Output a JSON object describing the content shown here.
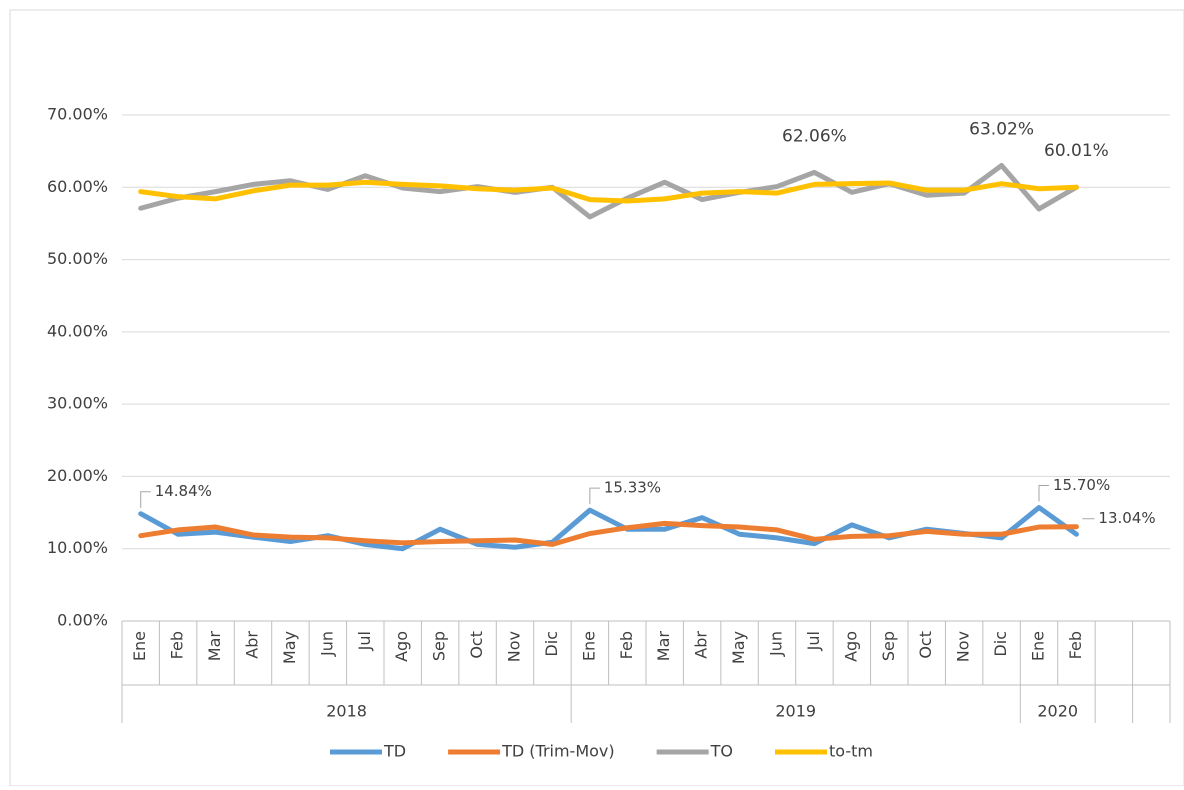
{
  "chart_data": {
    "type": "line",
    "category_groups": [
      {
        "name": "2018",
        "categories": [
          "Ene",
          "Feb",
          "Mar",
          "Abr",
          "May",
          "Jun",
          "Jul",
          "Ago",
          "Sep",
          "Oct",
          "Nov",
          "Dic"
        ]
      },
      {
        "name": "2019",
        "categories": [
          "Ene",
          "Feb",
          "Mar",
          "Abr",
          "May",
          "Jun",
          "Jul",
          "Ago",
          "Sep",
          "Oct",
          "Nov",
          "Dic"
        ]
      },
      {
        "name": "2020",
        "categories": [
          "Ene",
          "Feb"
        ]
      },
      {
        "name": null,
        "categories": [
          null,
          null
        ]
      }
    ],
    "series": [
      {
        "name": "TD",
        "color": "#5b9bd5",
        "values": [
          14.84,
          12.0,
          12.3,
          11.6,
          11.0,
          11.8,
          10.6,
          10.0,
          12.7,
          10.6,
          10.2,
          10.9,
          15.33,
          12.7,
          12.7,
          14.3,
          12.0,
          11.5,
          10.7,
          13.3,
          11.5,
          12.7,
          12.1,
          11.5,
          15.7,
          12.0,
          null,
          null
        ],
        "value_labels": [
          "14.84%",
          null,
          null,
          null,
          null,
          null,
          null,
          null,
          null,
          null,
          null,
          null,
          "15.33%",
          null,
          null,
          null,
          null,
          null,
          null,
          null,
          null,
          null,
          null,
          null,
          "15.70%",
          null,
          null,
          null
        ]
      },
      {
        "name": "TD (Trim-Mov)",
        "color": "#ed7d31",
        "values": [
          11.8,
          12.6,
          13.0,
          11.9,
          11.6,
          11.5,
          11.1,
          10.8,
          11.0,
          11.1,
          11.2,
          10.6,
          12.1,
          12.9,
          13.5,
          13.2,
          13.0,
          12.6,
          11.3,
          11.7,
          11.8,
          12.4,
          12.0,
          12.0,
          13.0,
          13.04,
          null,
          null
        ],
        "value_labels": [
          null,
          null,
          null,
          null,
          null,
          null,
          null,
          null,
          null,
          null,
          null,
          null,
          null,
          null,
          null,
          null,
          null,
          null,
          null,
          null,
          null,
          null,
          null,
          null,
          null,
          "13.04%",
          null,
          null
        ]
      },
      {
        "name": "TO",
        "color": "#a5a5a5",
        "values": [
          57.1,
          58.5,
          59.4,
          60.4,
          60.9,
          59.7,
          61.6,
          59.9,
          59.4,
          60.1,
          59.3,
          60.0,
          55.9,
          58.5,
          60.7,
          58.3,
          59.3,
          60.1,
          62.06,
          59.3,
          60.5,
          58.9,
          59.2,
          63.02,
          57.0,
          60.01,
          null,
          null
        ],
        "value_labels": [
          null,
          null,
          null,
          null,
          null,
          null,
          null,
          null,
          null,
          null,
          null,
          null,
          null,
          null,
          null,
          null,
          null,
          null,
          "62.06%",
          null,
          null,
          null,
          null,
          "63.02%",
          null,
          "60.01%",
          null,
          null
        ]
      },
      {
        "name": "to-tm",
        "color": "#ffc000",
        "values": [
          59.4,
          58.7,
          58.4,
          59.5,
          60.3,
          60.3,
          60.7,
          60.4,
          60.2,
          59.8,
          59.6,
          59.9,
          58.3,
          58.1,
          58.4,
          59.2,
          59.4,
          59.2,
          60.4,
          60.5,
          60.6,
          59.6,
          59.6,
          60.5,
          59.8,
          60.0,
          null,
          null
        ]
      }
    ],
    "ylim": [
      0,
      70
    ],
    "yticks": [
      {
        "value": 0,
        "label": "0.00%"
      },
      {
        "value": 10,
        "label": "10.00%"
      },
      {
        "value": 20,
        "label": "20.00%"
      },
      {
        "value": 30,
        "label": "30.00%"
      },
      {
        "value": 40,
        "label": "40.00%"
      },
      {
        "value": 50,
        "label": "50.00%"
      },
      {
        "value": 60,
        "label": "60.00%"
      },
      {
        "value": 70,
        "label": "70.00%"
      }
    ],
    "grid": true,
    "legend": "bottom"
  }
}
